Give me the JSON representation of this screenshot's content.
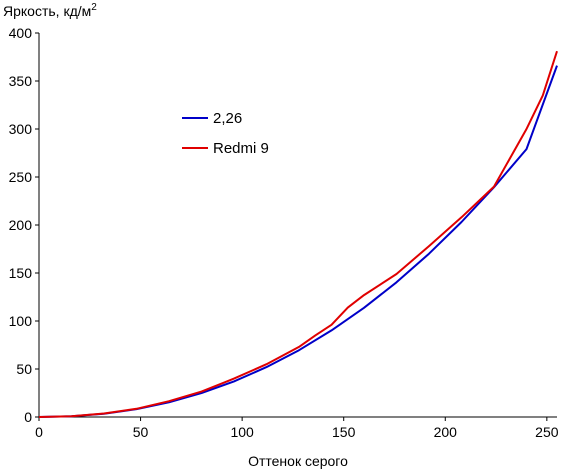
{
  "chart_data": {
    "type": "line",
    "ylabel": "Яркость, кд/м",
    "ylabel_sup": "2",
    "xlabel": "Оттенок серого",
    "xlim": [
      0,
      255
    ],
    "ylim": [
      0,
      400
    ],
    "xticks": [
      0,
      50,
      100,
      150,
      200,
      250
    ],
    "yticks": [
      0,
      50,
      100,
      150,
      200,
      250,
      300,
      350,
      400
    ],
    "grid": false,
    "legend_position": "upper-left inside plot",
    "series": [
      {
        "name": "2,26",
        "color": "#0000c8",
        "x": [
          0,
          16,
          32,
          48,
          64,
          80,
          96,
          112,
          128,
          144,
          160,
          176,
          192,
          208,
          224,
          240,
          255
        ],
        "y": [
          0,
          0.7,
          3.3,
          8.2,
          15.3,
          24.9,
          37.1,
          52.0,
          69.6,
          90.2,
          113.7,
          140.3,
          170.1,
          203.1,
          239.4,
          279.1,
          366.0
        ]
      },
      {
        "name": "Redmi 9",
        "color": "#e00000",
        "x": [
          0,
          16,
          32,
          48,
          64,
          80,
          96,
          112,
          128,
          136,
          144,
          152,
          160,
          176,
          192,
          208,
          224,
          240,
          248,
          255
        ],
        "y": [
          0,
          0.8,
          3.6,
          8.5,
          16.5,
          26.5,
          40.0,
          55.0,
          73.0,
          85.0,
          96.0,
          114.0,
          127.0,
          149.0,
          178.0,
          208.0,
          240.0,
          300.0,
          335.0,
          381.0
        ]
      }
    ]
  }
}
